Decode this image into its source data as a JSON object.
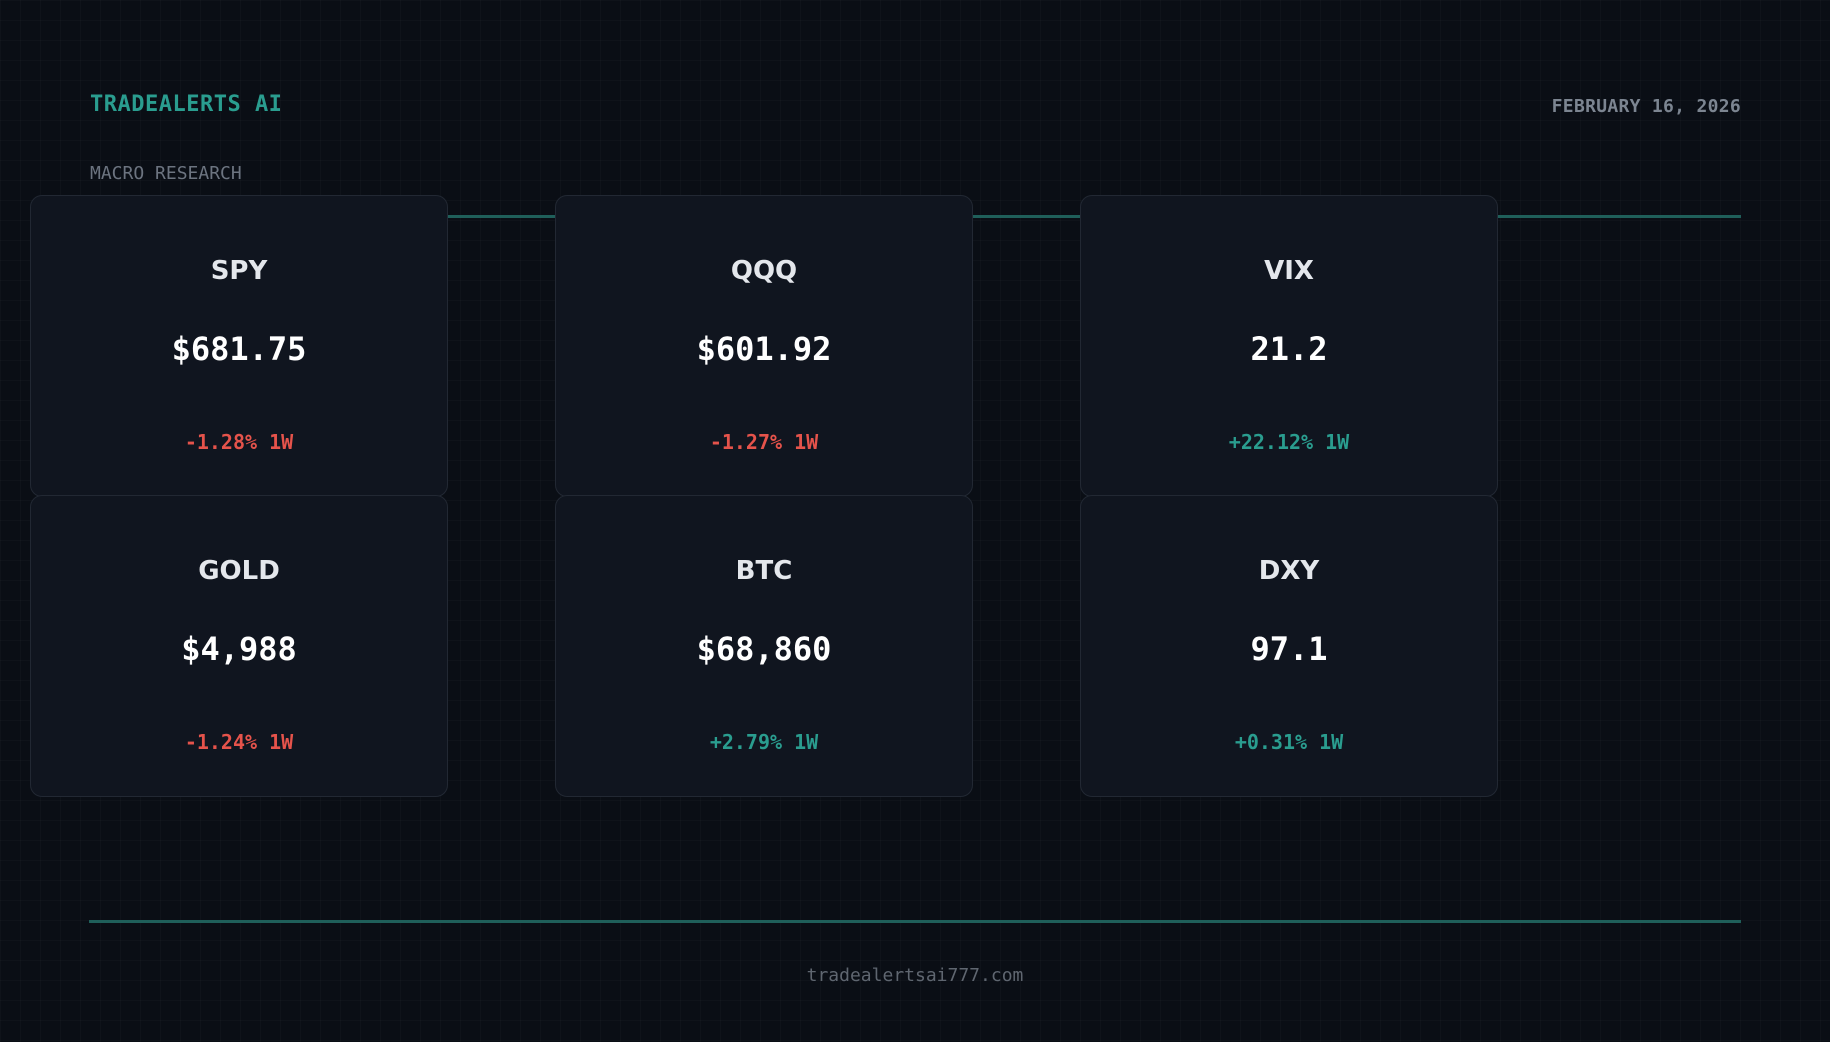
{
  "header": {
    "brand": "TRADEALERTS AI",
    "date": "FEBRUARY 16, 2026",
    "subtitle": "MACRO RESEARCH"
  },
  "colors": {
    "accent": "#2a9d8f",
    "negative": "#e5534b",
    "positive": "#2a9d8f",
    "background": "#0a0e15",
    "card": "#10151f"
  },
  "cards": [
    {
      "ticker": "SPY",
      "price": "$681.75",
      "change": "-1.28% 1W",
      "direction": "down"
    },
    {
      "ticker": "QQQ",
      "price": "$601.92",
      "change": "-1.27% 1W",
      "direction": "down"
    },
    {
      "ticker": "VIX",
      "price": "21.2",
      "change": "+22.12% 1W",
      "direction": "up"
    },
    {
      "ticker": "GOLD",
      "price": "$4,988",
      "change": "-1.24% 1W",
      "direction": "down"
    },
    {
      "ticker": "BTC",
      "price": "$68,860",
      "change": "+2.79% 1W",
      "direction": "up"
    },
    {
      "ticker": "DXY",
      "price": "97.1",
      "change": "+0.31% 1W",
      "direction": "up"
    }
  ],
  "footer": {
    "url": "tradealertsai777.com"
  }
}
